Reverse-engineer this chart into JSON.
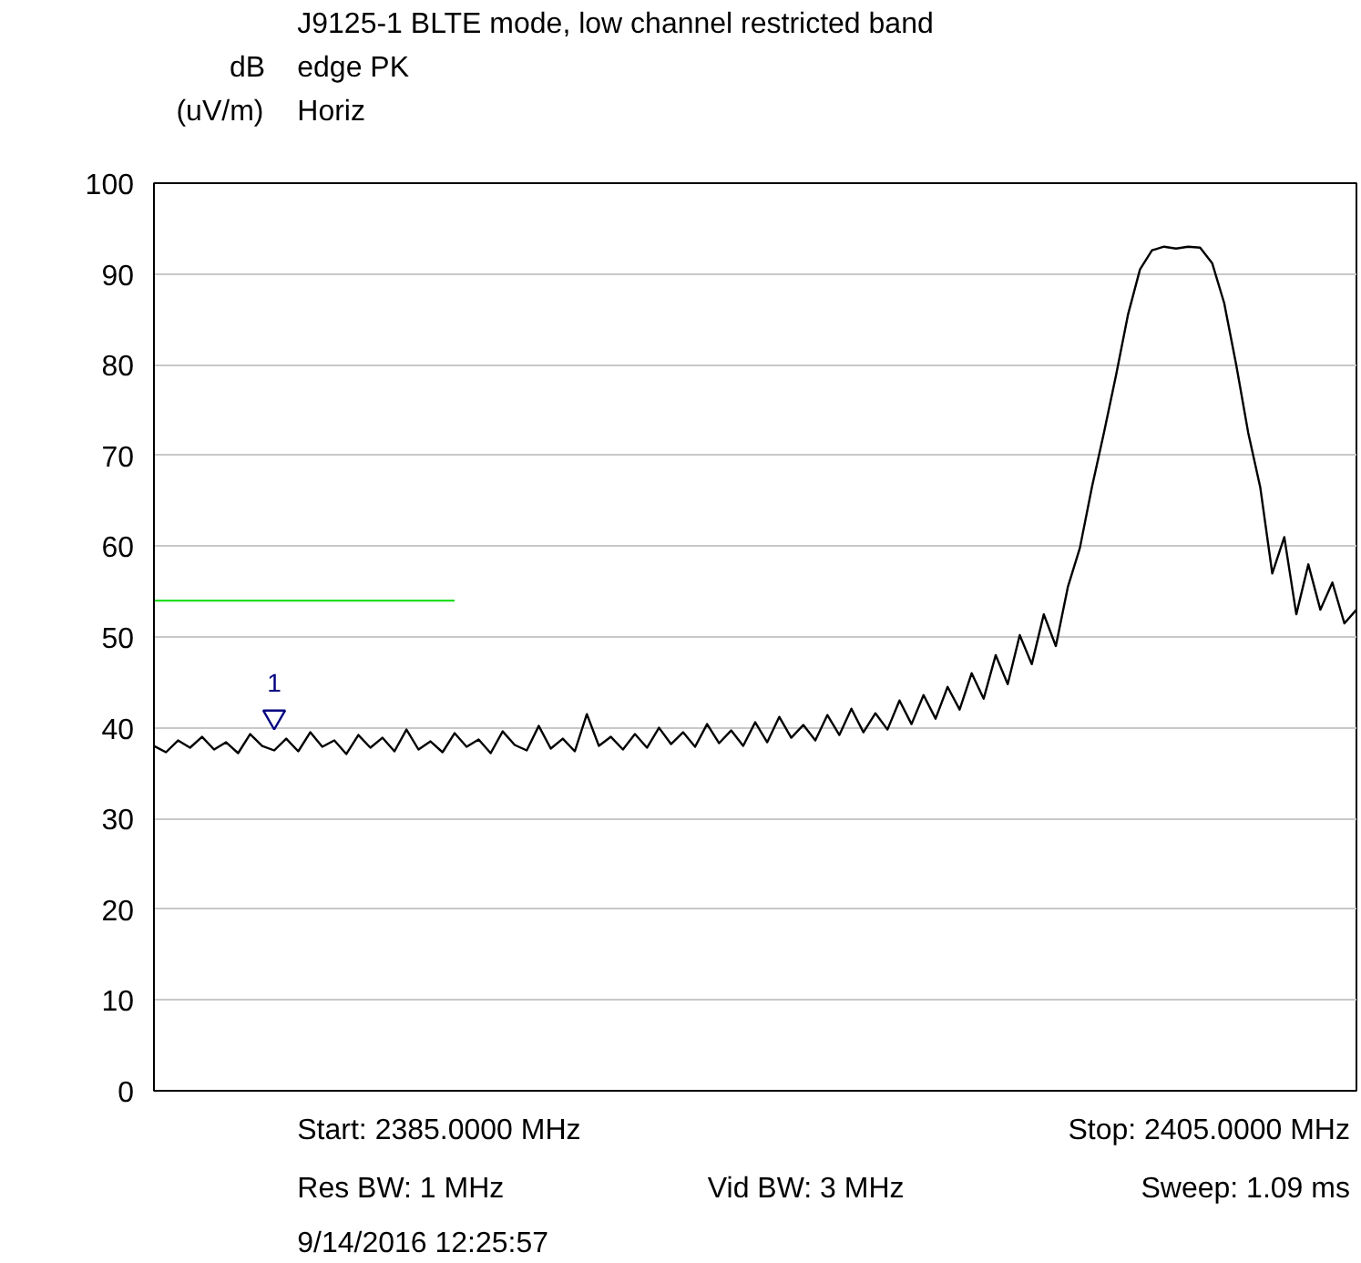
{
  "chart_data": {
    "type": "line",
    "title": "J9125-1 BLTE mode, low channel restricted band edge PK",
    "subtitle": "Horiz",
    "ylabel": "dB (uV/m)",
    "ylim": [
      0,
      100
    ],
    "yticks": [
      0,
      10,
      20,
      30,
      40,
      50,
      60,
      70,
      80,
      90,
      100
    ],
    "tick_labels": "y",
    "grid": "y",
    "categories": [
      null,
      null,
      null,
      null,
      null,
      null,
      null,
      null,
      null,
      null,
      null,
      null,
      null,
      null,
      null,
      null,
      null,
      null,
      null,
      null,
      null,
      null,
      null,
      null,
      null,
      null,
      null,
      null,
      null,
      null,
      null,
      null,
      null,
      null,
      null,
      null,
      null,
      null,
      null,
      null,
      null,
      null,
      null,
      null,
      null,
      null,
      null,
      null,
      null,
      null,
      null,
      null,
      null,
      null,
      null,
      null,
      null,
      null,
      null,
      null,
      null,
      null,
      null,
      null,
      null,
      null,
      null,
      null,
      null,
      null,
      null,
      null,
      null,
      null,
      null,
      null,
      null,
      null,
      null,
      null,
      null,
      null,
      null,
      null,
      null,
      null,
      null,
      null,
      null,
      null,
      null,
      null,
      null,
      null,
      null,
      null,
      null,
      null,
      null,
      null,
      null
    ],
    "series": [
      {
        "color": "#000000",
        "values": [
          38.0,
          37.3,
          38.6,
          37.8,
          39.0,
          37.6,
          38.4,
          37.2,
          39.3,
          38.0,
          37.5,
          38.8,
          37.4,
          39.5,
          37.9,
          38.6,
          37.1,
          39.2,
          37.8,
          38.9,
          37.4,
          39.8,
          37.6,
          38.5,
          37.3,
          39.4,
          37.9,
          38.7,
          37.2,
          39.6,
          38.1,
          37.5,
          40.2,
          37.7,
          38.8,
          37.4,
          41.5,
          38.0,
          39.0,
          37.6,
          39.3,
          37.8,
          40.0,
          38.2,
          39.5,
          37.9,
          40.4,
          38.3,
          39.7,
          38.0,
          40.6,
          38.4,
          41.2,
          38.9,
          40.3,
          38.6,
          41.4,
          39.2,
          42.1,
          39.5,
          41.6,
          39.8,
          43.0,
          40.4,
          43.6,
          41.0,
          44.5,
          42.0,
          46.0,
          43.2,
          48.0,
          44.8,
          50.2,
          47.0,
          52.5,
          49.0,
          55.5,
          59.8,
          66.5,
          72.5,
          78.8,
          85.5,
          90.5,
          92.6,
          93.0,
          92.8,
          93.0,
          92.9,
          91.2,
          86.8,
          80.0,
          72.5,
          66.5,
          57.0,
          61.0,
          52.5,
          58.0,
          53.0,
          56.0,
          51.5,
          53.0
        ]
      },
      {
        "color": "#22dd22",
        "values": [
          54,
          54,
          54,
          54,
          54,
          54,
          54,
          54,
          54,
          54,
          54,
          54,
          54,
          54,
          54,
          54,
          54,
          54,
          54,
          54,
          54,
          54,
          54,
          54,
          54,
          54,
          null,
          null,
          null,
          null,
          null,
          null,
          null,
          null,
          null,
          null,
          null,
          null,
          null,
          null,
          null,
          null,
          null,
          null,
          null,
          null,
          null,
          null,
          null,
          null,
          null,
          null,
          null,
          null,
          null,
          null,
          null,
          null,
          null,
          null,
          null,
          null,
          null,
          null,
          null,
          null,
          null,
          null,
          null,
          null,
          null,
          null,
          null,
          null,
          null,
          null,
          null,
          null,
          null,
          null,
          null,
          null,
          null,
          null,
          null,
          null,
          null,
          null,
          null,
          null,
          null,
          null,
          null,
          null,
          null,
          null,
          null,
          null,
          null,
          null,
          null
        ]
      },
      {
        "type": "scatter",
        "name": "1",
        "marker": "triangle",
        "color": "#000080",
        "values": [
          null,
          null,
          null,
          null,
          null,
          null,
          null,
          null,
          null,
          null,
          41.2,
          null,
          null,
          null,
          null,
          null,
          null,
          null,
          null,
          null,
          null,
          null,
          null,
          null,
          null,
          null,
          null,
          null,
          null,
          null,
          null,
          null,
          null,
          null,
          null,
          null,
          null,
          null,
          null,
          null,
          null,
          null,
          null,
          null,
          null,
          null,
          null,
          null,
          null,
          null,
          null,
          null,
          null,
          null,
          null,
          null,
          null,
          null,
          null,
          null,
          null,
          null,
          null,
          null,
          null,
          null,
          null,
          null,
          null,
          null,
          null,
          null,
          null,
          null,
          null,
          null,
          null,
          null,
          null,
          null,
          null,
          null,
          null,
          null,
          null,
          null,
          null,
          null,
          null,
          null,
          null,
          null,
          null,
          null,
          null,
          null,
          null,
          null,
          null,
          null,
          null
        ]
      }
    ],
    "annotations": [
      "Start: 2385.0000 MHz",
      "Stop: 2405.0000 MHz",
      "Res BW: 1 MHz",
      "Vid BW: 3 MHz",
      "Sweep: 1.09 ms",
      "9/14/2016 12:25:57"
    ]
  }
}
